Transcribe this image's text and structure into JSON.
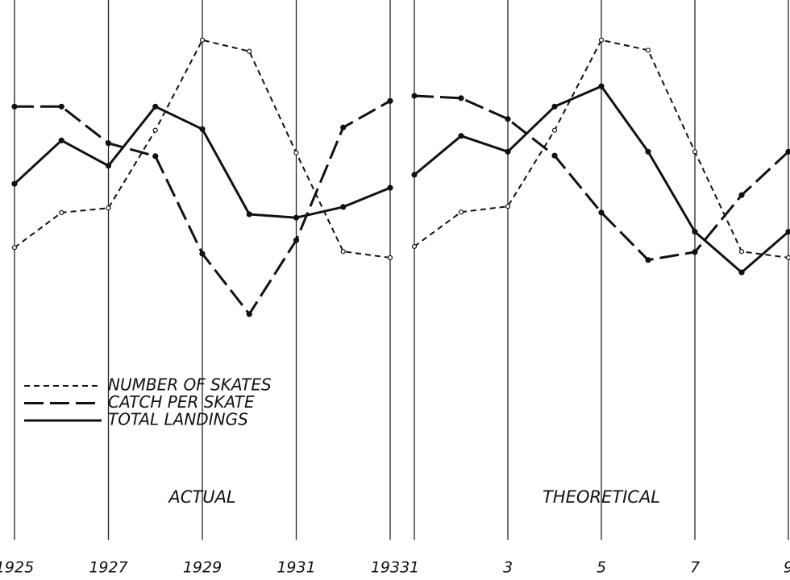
{
  "chart_data": [
    {
      "type": "line",
      "annotation": "ACTUAL",
      "categories": [
        "1925",
        null,
        "1927",
        null,
        "1929",
        null,
        "1931",
        null,
        "1933"
      ],
      "ylim": [
        0,
        100
      ],
      "series": [
        {
          "name": "NUMBER OF SKATES",
          "color": "#111111",
          "style": "dotted",
          "values": [
            56.1,
            62.3,
            63.1,
            76.9,
            92.9,
            90.9,
            72.9,
            55.4,
            54.3
          ]
        },
        {
          "name": "CATCH PER SKATE",
          "color": "#111111",
          "style": "dashed",
          "values": [
            81.1,
            81.1,
            74.6,
            72.3,
            55.0,
            44.3,
            57.4,
            77.4,
            82.1
          ]
        },
        {
          "name": "TOTAL LANDINGS",
          "color": "#111111",
          "style": "solid",
          "values": [
            67.4,
            75.1,
            70.6,
            81.1,
            77.1,
            62.0,
            61.4,
            63.3,
            66.7
          ]
        }
      ]
    },
    {
      "type": "line",
      "annotation": "THEORETICAL",
      "categories": [
        "1",
        null,
        "3",
        null,
        "5",
        null,
        "7",
        null,
        "9"
      ],
      "ylim": [
        0,
        100
      ],
      "series": [
        {
          "color": "#111111",
          "style": "dotted",
          "values": [
            56.3,
            62.4,
            63.4,
            76.9,
            92.9,
            91.1,
            73.1,
            55.4,
            54.3
          ]
        },
        {
          "color": "#111111",
          "style": "dashed",
          "values": [
            83.0,
            82.6,
            78.9,
            72.4,
            62.3,
            53.9,
            55.3,
            65.4,
            73.1
          ]
        },
        {
          "color": "#111111",
          "style": "solid",
          "values": [
            69.0,
            75.9,
            73.1,
            81.1,
            84.7,
            73.1,
            58.9,
            51.7,
            58.9
          ]
        }
      ]
    }
  ]
}
